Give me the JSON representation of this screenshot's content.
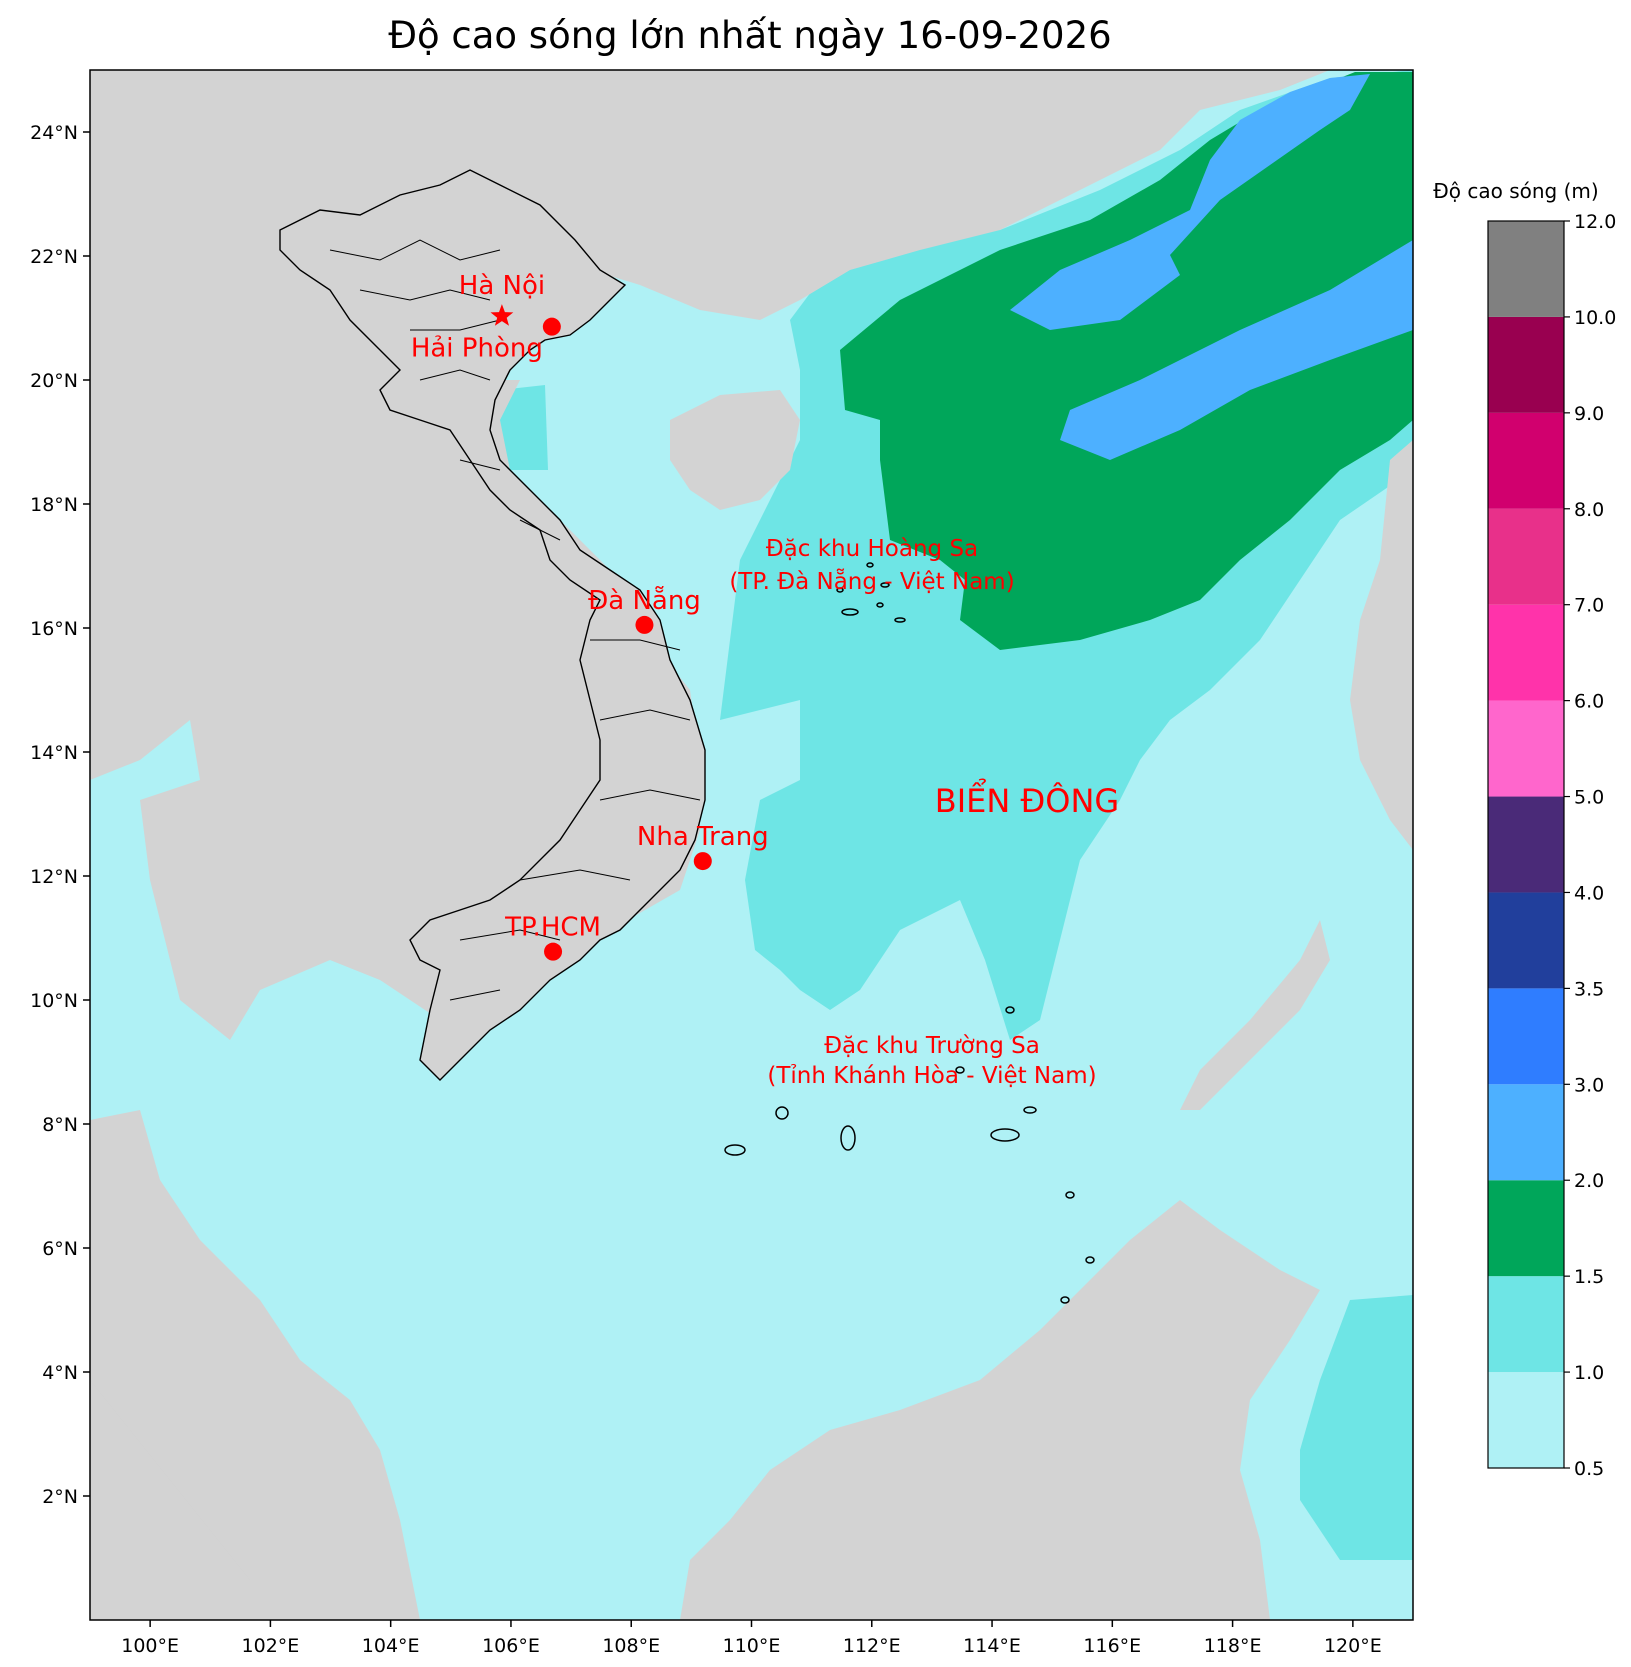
{
  "title": "Độ cao sóng lớn nhất ngày 16-09-2026",
  "axes": {
    "lon_ticks": [
      "100°E",
      "102°E",
      "104°E",
      "106°E",
      "108°E",
      "110°E",
      "112°E",
      "114°E",
      "116°E",
      "118°E",
      "120°E"
    ],
    "lat_ticks": [
      "2°N",
      "4°N",
      "6°N",
      "8°N",
      "10°N",
      "12°N",
      "14°N",
      "16°N",
      "18°N",
      "20°N",
      "22°N",
      "24°N"
    ],
    "lon_range": [
      99,
      121
    ],
    "lat_range": [
      0,
      25
    ]
  },
  "cities": [
    {
      "name": "Hà Nội",
      "lon": 105.85,
      "lat": 21.03,
      "marker": "star"
    },
    {
      "name": "Hải Phòng",
      "lon": 106.68,
      "lat": 20.86,
      "marker": "dot"
    },
    {
      "name": "Đà Nẵng",
      "lon": 108.22,
      "lat": 16.05,
      "marker": "dot"
    },
    {
      "name": "Nha Trang",
      "lon": 109.19,
      "lat": 12.24,
      "marker": "dot"
    },
    {
      "name": "TP.HCM",
      "lon": 106.7,
      "lat": 10.78,
      "marker": "dot"
    }
  ],
  "annotations": {
    "hoang_sa_line1": "Đặc khu Hoàng Sa",
    "hoang_sa_line2": "(TP. Đà Nẵng - Việt Nam)",
    "truong_sa_line1": "Đặc khu Trường Sa",
    "truong_sa_line2": "(Tỉnh Khánh Hòa - Việt Nam)",
    "sea_name": "BIỂN ĐÔNG"
  },
  "colorbar": {
    "title": "Độ cao sóng (m)",
    "levels": [
      "0.5",
      "1.0",
      "1.5",
      "2.0",
      "3.0",
      "3.5",
      "4.0",
      "5.0",
      "6.0",
      "7.0",
      "8.0",
      "9.0",
      "10.0",
      "12.0"
    ],
    "colors": [
      "#aff1f5",
      "#6ee5e5",
      "#00a65a",
      "#4db0ff",
      "#2f7dff",
      "#213f9c",
      "#4a2a78",
      "#ff66cc",
      "#ff33aa",
      "#e8308a",
      "#d1006e",
      "#990050",
      "#808080"
    ]
  },
  "colors": {
    "land": "#d3d3d3",
    "sea_low": "#aff1f5",
    "sea_mid": "#6ee5e5",
    "sea_green": "#00a65a",
    "sea_blue": "#4db0ff",
    "marker": "#ff0000"
  }
}
